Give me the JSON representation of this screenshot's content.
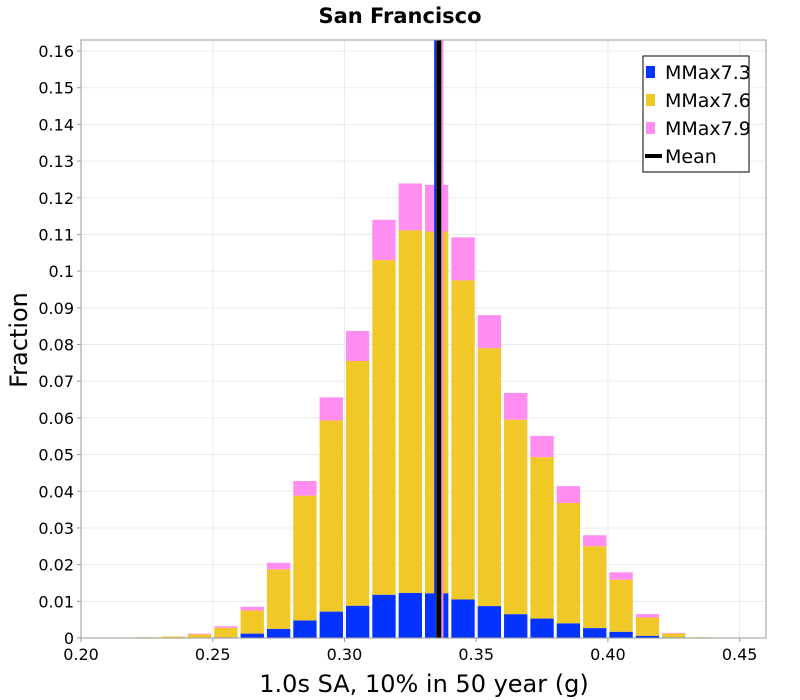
{
  "chart_data": {
    "type": "bar",
    "stacked": true,
    "title": "San Francisco",
    "xlabel": "1.0s SA, 10% in 50 year (g)",
    "ylabel": "Fraction",
    "xlim": [
      0.2,
      0.46
    ],
    "ylim": [
      0,
      0.163
    ],
    "grid": true,
    "x_ticks": [
      "0.20",
      "0.25",
      "0.30",
      "0.35",
      "0.40",
      "0.45"
    ],
    "y_ticks": [
      "0",
      "0.01",
      "0.02",
      "0.03",
      "0.04",
      "0.05",
      "0.06",
      "0.07",
      "0.08",
      "0.09",
      "0.1",
      "0.11",
      "0.12",
      "0.13",
      "0.14",
      "0.15",
      "0.16"
    ],
    "bin_width": 0.01,
    "bin_centers": [
      0.215,
      0.225,
      0.235,
      0.245,
      0.255,
      0.265,
      0.275,
      0.285,
      0.295,
      0.305,
      0.315,
      0.325,
      0.335,
      0.345,
      0.355,
      0.365,
      0.375,
      0.385,
      0.395,
      0.405,
      0.415,
      0.425,
      0.435,
      0.445
    ],
    "series": [
      {
        "name": "MMax7.3",
        "color": "#0433ff",
        "values": [
          0,
          0,
          0,
          0,
          0.0002,
          0.0012,
          0.0025,
          0.0048,
          0.0072,
          0.0088,
          0.0118,
          0.0123,
          0.0122,
          0.0105,
          0.0087,
          0.0065,
          0.0053,
          0.004,
          0.0027,
          0.0017,
          0.0006,
          0.0002,
          0,
          0
        ]
      },
      {
        "name": "MMax7.6",
        "color": "#f0c929",
        "values": [
          0.0001,
          0.0002,
          0.0004,
          0.001,
          0.0026,
          0.0063,
          0.0162,
          0.034,
          0.0521,
          0.0667,
          0.0912,
          0.0988,
          0.0986,
          0.087,
          0.0703,
          0.053,
          0.044,
          0.0328,
          0.0223,
          0.0142,
          0.005,
          0.001,
          0.0002,
          0.0001
        ]
      },
      {
        "name": "MMax7.9",
        "color": "#ff8ef0",
        "values": [
          0,
          0,
          0,
          0.0002,
          0.0004,
          0.001,
          0.0018,
          0.004,
          0.0063,
          0.0082,
          0.011,
          0.0128,
          0.0127,
          0.0117,
          0.009,
          0.0073,
          0.0058,
          0.0046,
          0.003,
          0.002,
          0.0009,
          0.0002,
          0,
          0
        ]
      }
    ],
    "mean_lines": [
      {
        "name": "MMax7.3",
        "x": 0.3348,
        "color": "#0433ff"
      },
      {
        "name": "MMax7.6",
        "x": 0.3355,
        "color": "#f0c929"
      },
      {
        "name": "MMax7.9",
        "x": 0.3368,
        "color": "#ff8ef0"
      },
      {
        "name": "Mean",
        "x": 0.3358,
        "color": "#000000"
      }
    ],
    "legend": {
      "position": "top-right",
      "entries": [
        {
          "label": "MMax7.3",
          "color": "#0433ff",
          "kind": "box"
        },
        {
          "label": "MMax7.6",
          "color": "#f0c929",
          "kind": "box"
        },
        {
          "label": "MMax7.9",
          "color": "#ff8ef0",
          "kind": "box"
        },
        {
          "label": "Mean",
          "color": "#000000",
          "kind": "line"
        }
      ]
    }
  }
}
